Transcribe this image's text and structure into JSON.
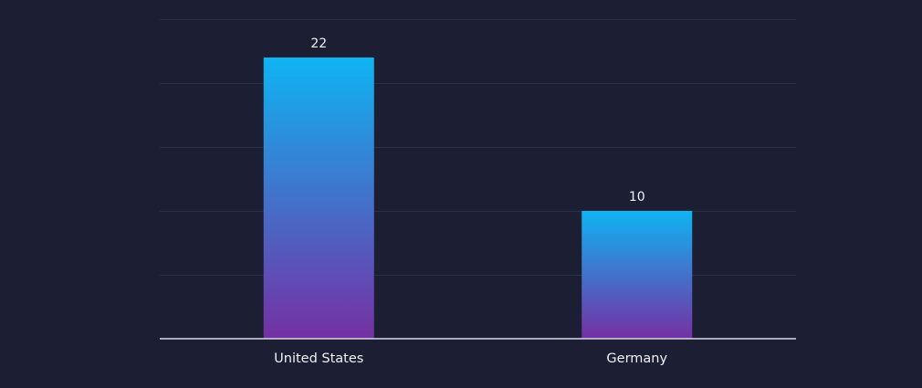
{
  "chart_data": {
    "type": "bar",
    "categories": [
      "United States",
      "Germany"
    ],
    "values": [
      22,
      10
    ],
    "title": "",
    "xlabel": "",
    "ylabel": "",
    "ylim": [
      0,
      25
    ],
    "grid": true,
    "legend": "none"
  },
  "colors": {
    "background": "#1c1e33",
    "bar_gradient_top": "#0fb4f2",
    "bar_gradient_bottom": "#7530a3",
    "gridline": "#2c2f48",
    "axis": "#d6d8e6",
    "text": "#f0f1f7"
  }
}
